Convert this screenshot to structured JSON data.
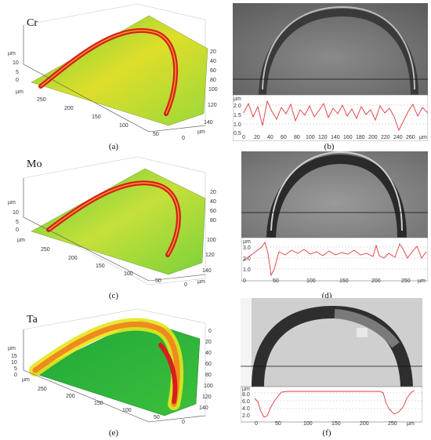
{
  "colors": {
    "ring": "#d81e1e",
    "surface_low": "#28c028",
    "surface_mid": "#e6e61e",
    "profile_line": "#e03a3a"
  },
  "panels": [
    {
      "id": "a",
      "element": "Cr",
      "caption": "(a)",
      "z_axis": {
        "unit": "µm",
        "ticks": [
          "10",
          "5",
          "0"
        ]
      },
      "x_axis": {
        "unit": "µm",
        "ticks": [
          "250",
          "200",
          "150",
          "100",
          "50",
          "0"
        ]
      },
      "y_axis": {
        "unit": "µm",
        "ticks": [
          "20",
          "40",
          "60",
          "80",
          "100",
          "120",
          "140"
        ]
      }
    },
    {
      "id": "c",
      "element": "Mo",
      "caption": "(c)",
      "z_axis": {
        "unit": "µm",
        "ticks": [
          "10",
          "5",
          "0"
        ]
      },
      "x_axis": {
        "unit": "µm",
        "ticks": [
          "250",
          "200",
          "150",
          "100",
          "50",
          "0"
        ]
      },
      "y_axis": {
        "unit": "µm",
        "ticks": [
          "20",
          "40",
          "60",
          "80",
          "100",
          "120",
          "140"
        ]
      }
    },
    {
      "id": "e",
      "element": "Ta",
      "caption": "(e)",
      "z_axis": {
        "unit": "µm",
        "ticks": [
          "15",
          "10",
          "5",
          "0"
        ]
      },
      "x_axis": {
        "unit": "µm",
        "ticks": [
          "250",
          "200",
          "150",
          "100",
          "50",
          "0"
        ]
      },
      "y_axis": {
        "unit": "µm",
        "ticks": [
          "0",
          "20",
          "40",
          "60",
          "80",
          "100",
          "120",
          "140"
        ]
      }
    }
  ],
  "profiles": [
    {
      "id": "b",
      "caption": "(b)",
      "y_unit": "µm",
      "y_ticks": [
        "2.0",
        "1.5",
        "1.0",
        "0.5"
      ],
      "x_unit": "µm",
      "x_ticks": [
        "0",
        "20",
        "40",
        "60",
        "80",
        "100",
        "120",
        "140",
        "160",
        "180",
        "200",
        "220",
        "240",
        "260"
      ]
    },
    {
      "id": "d",
      "caption": "(d)",
      "y_unit": "µm",
      "y_ticks": [
        "3.0",
        "2.0",
        "1.0"
      ],
      "x_unit": "µm",
      "x_ticks": [
        "0",
        "50",
        "100",
        "150",
        "200",
        "250"
      ]
    },
    {
      "id": "f",
      "caption": "(f)",
      "y_unit": "µm",
      "y_ticks": [
        "8.0",
        "6.0",
        "4.0",
        "2.0"
      ],
      "x_unit": "µm",
      "x_ticks": [
        "0",
        "50",
        "100",
        "150",
        "200",
        "250"
      ]
    }
  ]
}
